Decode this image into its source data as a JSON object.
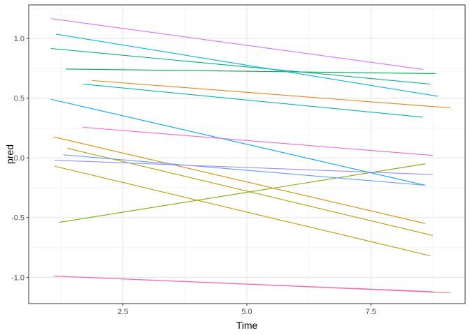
{
  "chart_data": {
    "type": "line",
    "xlabel": "Time",
    "ylabel": "pred",
    "xlim": [
      0.6,
      9.4
    ],
    "ylim": [
      -1.22,
      1.28
    ],
    "x_ticks": [
      2.5,
      5.0,
      7.5
    ],
    "x_tick_labels": [
      "2.5",
      "5.0",
      "7.5"
    ],
    "y_ticks": [
      -1.0,
      -0.5,
      0.0,
      0.5,
      1.0
    ],
    "y_tick_labels": [
      "-1.0",
      "-0.5",
      "0.0",
      "0.5",
      "1.0"
    ],
    "grid": true,
    "legend": "none",
    "series": [
      {
        "color": "#E7861B",
        "x": [
          1.88,
          9.1
        ],
        "y": [
          0.647,
          0.418
        ]
      },
      {
        "color": "#F8766D",
        "x": [
          1.12,
          9.1
        ],
        "y": [
          -0.99,
          -1.13
        ]
      },
      {
        "color": "#DE8C00",
        "x": [
          1.1,
          8.6
        ],
        "y": [
          0.175,
          -0.55
        ]
      },
      {
        "color": "#C49A00",
        "x": [
          1.12,
          8.7
        ],
        "y": [
          -0.07,
          -0.82
        ]
      },
      {
        "color": "#B79F00",
        "x": [
          1.38,
          8.75
        ],
        "y": [
          0.08,
          -0.65
        ]
      },
      {
        "color": "#7CAE00",
        "x": [
          1.22,
          8.6
        ],
        "y": [
          -0.54,
          -0.05
        ]
      },
      {
        "color": "#00A94D",
        "x": [
          1.35,
          8.8
        ],
        "y": [
          0.743,
          0.705
        ]
      },
      {
        "color": "#00B17E",
        "x": [
          1.05,
          8.7
        ],
        "y": [
          0.915,
          0.617
        ]
      },
      {
        "color": "#00BBA8",
        "x": [
          1.7,
          8.55
        ],
        "y": [
          0.617,
          0.34
        ]
      },
      {
        "color": "#00B8E5",
        "x": [
          1.15,
          8.85
        ],
        "y": [
          1.035,
          0.515
        ]
      },
      {
        "color": "#00A5FF",
        "x": [
          1.05,
          8.6
        ],
        "y": [
          0.49,
          -0.23
        ]
      },
      {
        "color": "#619CFF",
        "x": [
          1.3,
          8.6
        ],
        "y": [
          0.025,
          -0.23
        ]
      },
      {
        "color": "#9C8DFF",
        "x": [
          1.12,
          8.75
        ],
        "y": [
          -0.02,
          -0.14
        ]
      },
      {
        "color": "#DB72FB",
        "x": [
          1.05,
          8.55
        ],
        "y": [
          1.165,
          0.74
        ]
      },
      {
        "color": "#F265D9",
        "x": [
          1.7,
          8.75
        ],
        "y": [
          0.255,
          0.02
        ]
      },
      {
        "color": "#FF61C3",
        "x": [
          1.1,
          8.75
        ],
        "y": [
          -0.99,
          -1.12
        ]
      }
    ]
  }
}
